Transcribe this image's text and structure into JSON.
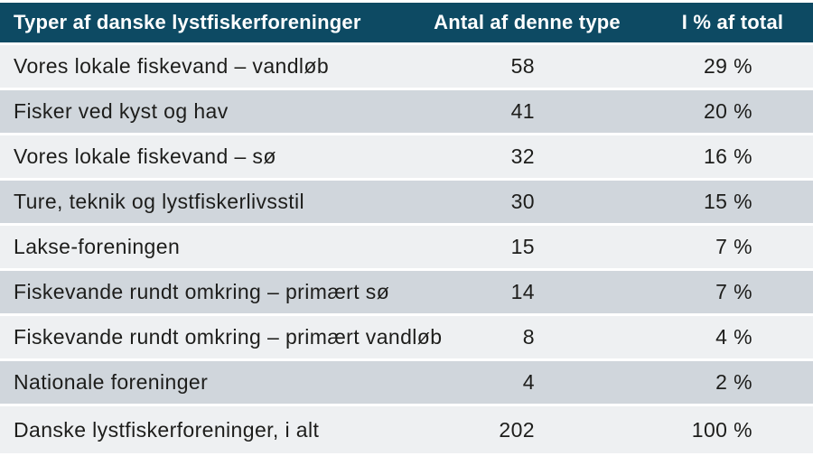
{
  "colors": {
    "header_bg": "#0d4a63",
    "header_text": "#ffffff",
    "row_light": "#eef0f2",
    "row_dark": "#d0d6dc",
    "body_text": "#1d1d1b",
    "divider": "#ffffff"
  },
  "chart_data": {
    "type": "table",
    "title": "Typer af danske lystfiskerforeninger",
    "columns": [
      "Typer af danske lystfiskerforeninger",
      "Antal af denne type",
      "I % af total"
    ],
    "rows": [
      [
        "Vores lokale fiskevand – vandløb",
        "58",
        "29 %"
      ],
      [
        "Fisker ved kyst og hav",
        "41",
        "20 %"
      ],
      [
        "Vores lokale fiskevand – sø",
        "32",
        "16 %"
      ],
      [
        "Ture, teknik og lystfiskerlivsstil",
        "30",
        "15 %"
      ],
      [
        "Lakse-foreningen",
        "15",
        "7 %"
      ],
      [
        "Fiskevande rundt omkring – primært sø",
        "14",
        "7 %"
      ],
      [
        "Fiskevande rundt omkring – primært vandløb",
        "8",
        "4 %"
      ],
      [
        "Nationale foreninger",
        "4",
        "2 %"
      ],
      [
        "Danske lystfiskerforeninger, i alt",
        "202",
        "100 %"
      ]
    ],
    "layout": {
      "striped": true,
      "count_column_align": "right",
      "percent_column_align": "right",
      "total_row_index": 8,
      "total_count": 202
    }
  }
}
